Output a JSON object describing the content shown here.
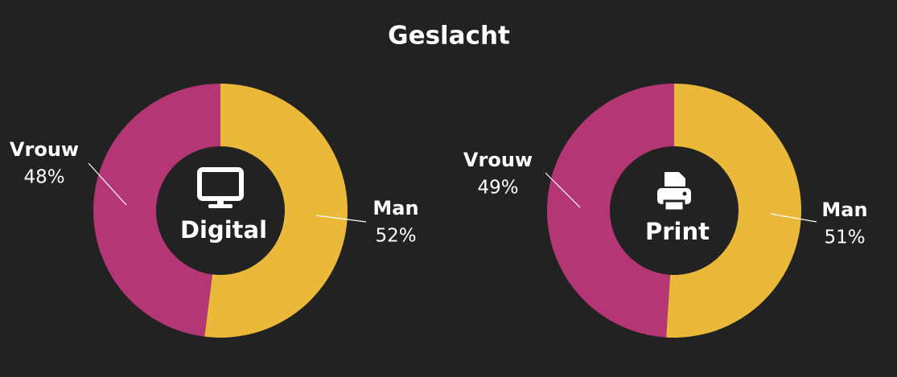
{
  "title": "Geslacht",
  "chart_data": [
    {
      "type": "donut",
      "center_label": "Digital",
      "categories": [
        "Man",
        "Vrouw"
      ],
      "values": [
        52,
        48
      ],
      "value_labels": [
        "52%",
        "48%"
      ],
      "colors": [
        "#ebb93a",
        "#b53674"
      ]
    },
    {
      "type": "donut",
      "center_label": "Print",
      "categories": [
        "Man",
        "Vrouw"
      ],
      "values": [
        51,
        49
      ],
      "value_labels": [
        "51%",
        "49%"
      ],
      "colors": [
        "#ebb93a",
        "#b53674"
      ]
    }
  ]
}
